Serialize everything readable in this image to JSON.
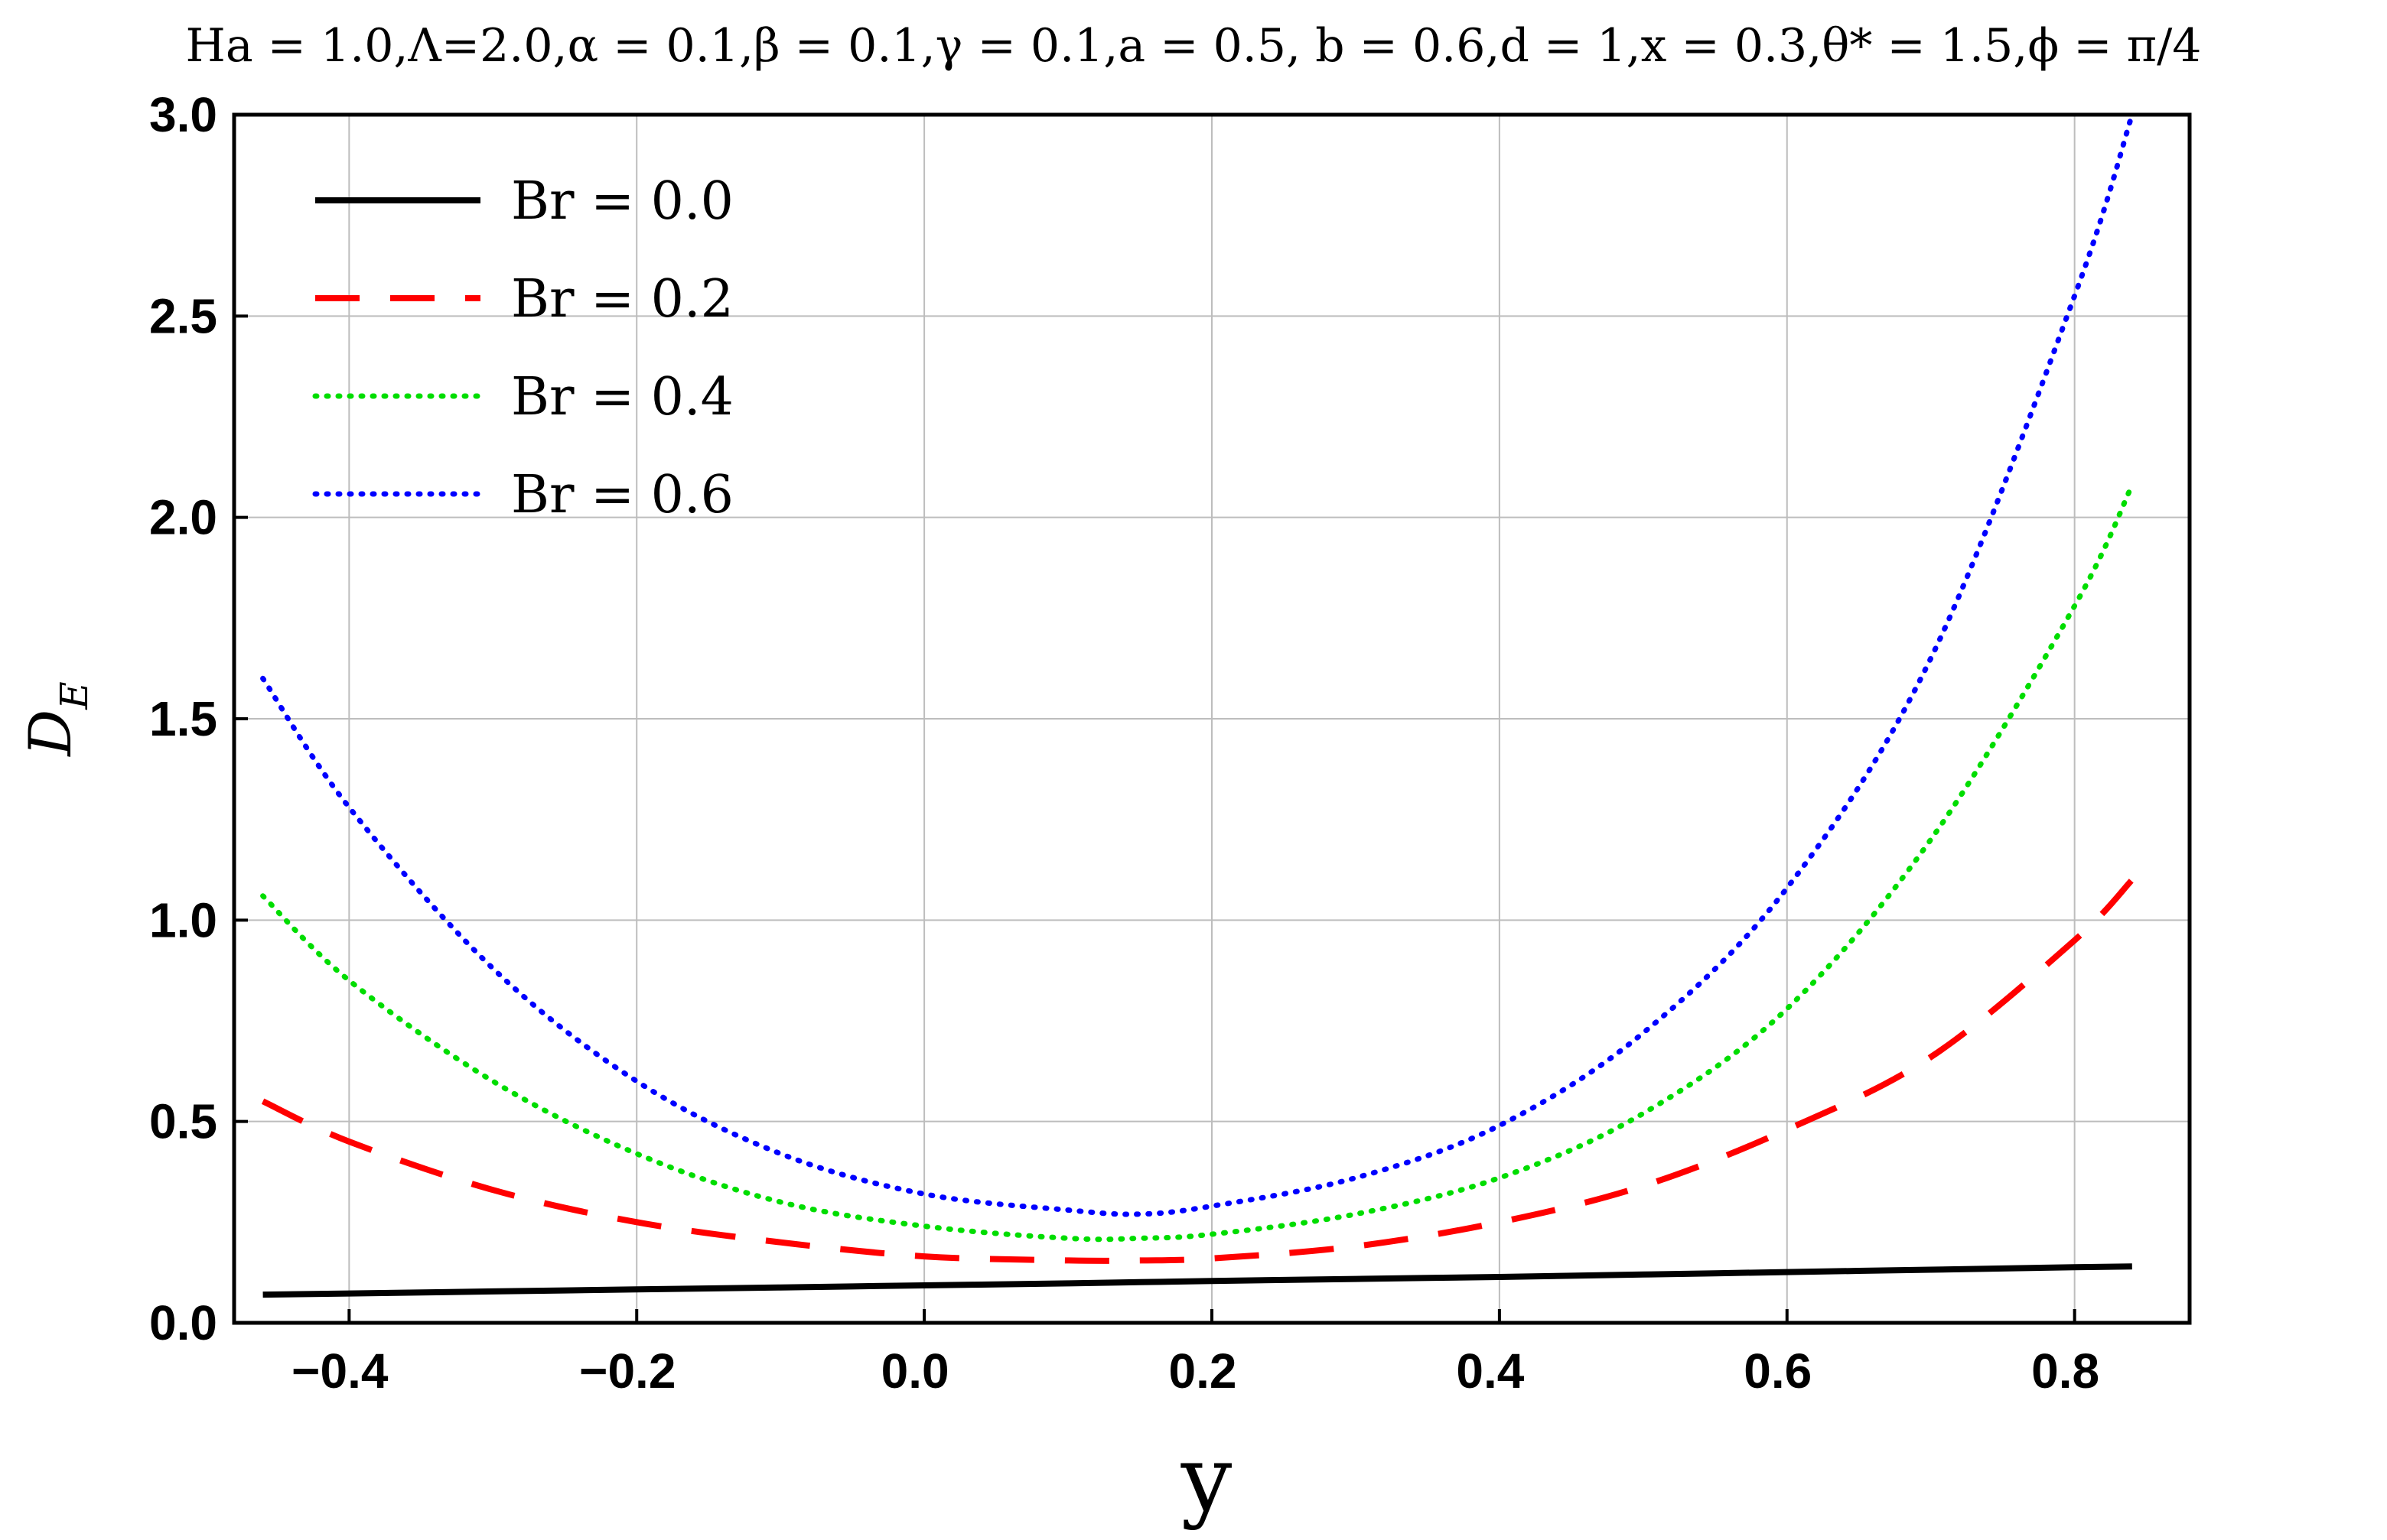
{
  "chart_data": {
    "type": "line",
    "title": "Ha = 1.0,Λ=2.0,α = 0.1,β = 0.1,γ = 0.1,a = 0.5, b = 0.6,d = 1,x = 0.3,θ* = 1.5,ϕ = π/4",
    "xlabel": "y",
    "ylabel": "D",
    "ylabel_subscript": "E",
    "xlim": [
      -0.48,
      0.88
    ],
    "ylim": [
      0,
      3.0
    ],
    "x_ticks": [
      -0.4,
      -0.2,
      0.0,
      0.2,
      0.4,
      0.6,
      0.8
    ],
    "x_tick_labels": [
      "−0.4",
      "−0.2",
      "0.0",
      "0.2",
      "0.4",
      "0.6",
      "0.8"
    ],
    "y_ticks": [
      0.0,
      0.5,
      1.0,
      1.5,
      2.0,
      2.5,
      3.0
    ],
    "y_tick_labels": [
      "0.0",
      "0.5",
      "1.0",
      "1.5",
      "2.0",
      "2.5",
      "3.0"
    ],
    "grid": true,
    "legend_position": "top-left",
    "x": [
      -0.46,
      -0.4,
      -0.3,
      -0.2,
      -0.1,
      0.0,
      0.1,
      0.15,
      0.2,
      0.3,
      0.4,
      0.5,
      0.6,
      0.7,
      0.8,
      0.84
    ],
    "series": [
      {
        "name": "Br = 0.0",
        "color": "#000000",
        "style": "solid",
        "values": [
          0.07,
          0.073,
          0.078,
          0.083,
          0.088,
          0.093,
          0.098,
          0.101,
          0.104,
          0.109,
          0.114,
          0.12,
          0.126,
          0.132,
          0.138,
          0.14
        ]
      },
      {
        "name": "Br = 0.2",
        "color": "#ff0000",
        "style": "dashed",
        "values": [
          0.55,
          0.45,
          0.33,
          0.25,
          0.2,
          0.165,
          0.155,
          0.155,
          0.16,
          0.19,
          0.25,
          0.34,
          0.48,
          0.66,
          0.95,
          1.1
        ]
      },
      {
        "name": "Br = 0.4",
        "color": "#00dd00",
        "style": "dotted",
        "values": [
          1.06,
          0.85,
          0.6,
          0.42,
          0.3,
          0.24,
          0.21,
          0.21,
          0.22,
          0.27,
          0.36,
          0.52,
          0.78,
          1.2,
          1.78,
          2.08
        ]
      },
      {
        "name": "Br = 0.6",
        "color": "#0000ff",
        "style": "dotted",
        "values": [
          1.6,
          1.28,
          0.88,
          0.6,
          0.42,
          0.32,
          0.28,
          0.27,
          0.29,
          0.36,
          0.49,
          0.72,
          1.08,
          1.65,
          2.55,
          3.0
        ]
      }
    ]
  }
}
